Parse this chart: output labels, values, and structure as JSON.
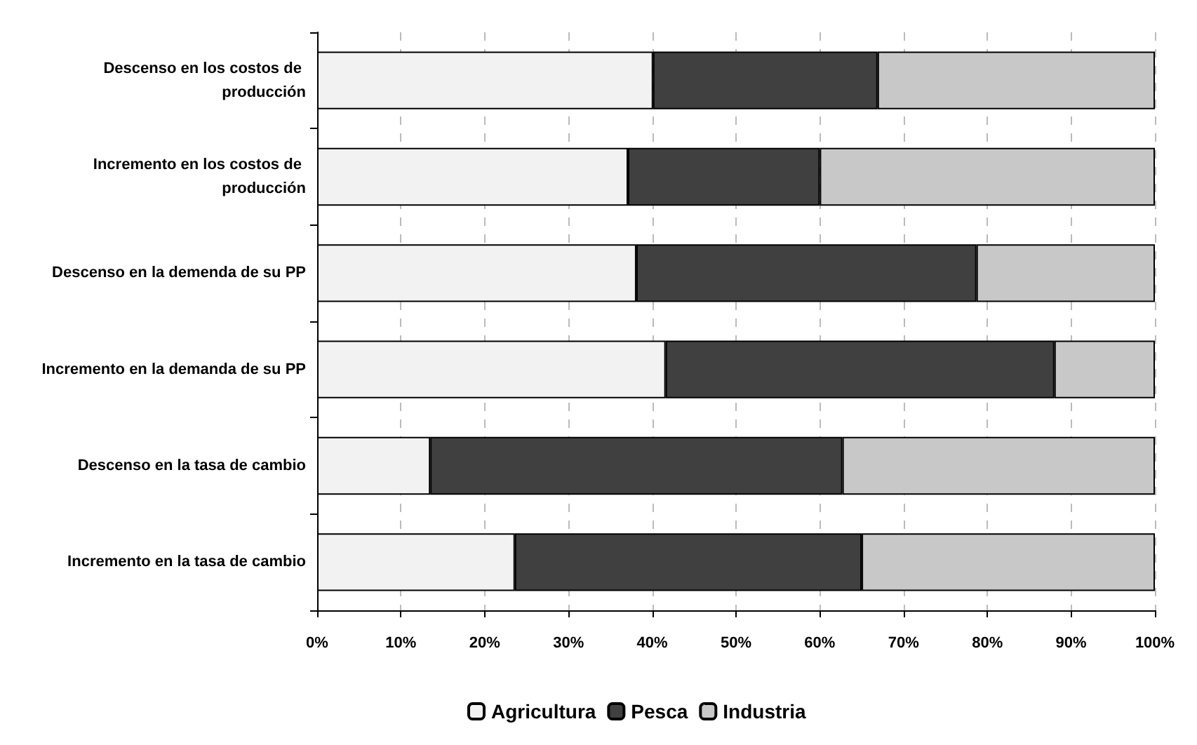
{
  "chart_data": {
    "type": "bar",
    "orientation": "horizontal",
    "stacked": true,
    "categories": [
      "Descenso en los costos de producción",
      "Incremento en los costos de producción",
      "Descenso en la demenda de su PP",
      "Incremento en la demanda de su PP",
      "Descenso en la tasa de cambio",
      "Incremento en la tasa de cambio"
    ],
    "series": [
      {
        "name": "Agricultura",
        "color": "#f2f2f2",
        "values": [
          40.1,
          37.1,
          38.1,
          41.6,
          13.5,
          23.6
        ]
      },
      {
        "name": "Pesca",
        "color": "#404040",
        "values": [
          26.8,
          22.9,
          40.6,
          46.4,
          49.2,
          41.4
        ]
      },
      {
        "name": "Industria",
        "color": "#c8c8c8",
        "values": [
          33.1,
          40.0,
          21.3,
          12.0,
          37.3,
          35.0
        ]
      }
    ],
    "xlim": [
      0,
      100
    ],
    "xticks": [
      {
        "value": 0,
        "label": "0%"
      },
      {
        "value": 10,
        "label": "10%"
      },
      {
        "value": 20,
        "label": "20%"
      },
      {
        "value": 30,
        "label": "30%"
      },
      {
        "value": 40,
        "label": "40%"
      },
      {
        "value": 50,
        "label": "50%"
      },
      {
        "value": 60,
        "label": "60%"
      },
      {
        "value": 70,
        "label": "70%"
      },
      {
        "value": 80,
        "label": "80%"
      },
      {
        "value": 90,
        "label": "90%"
      },
      {
        "value": 100,
        "label": "100%"
      }
    ],
    "grid": "x",
    "legend": "bottom"
  }
}
